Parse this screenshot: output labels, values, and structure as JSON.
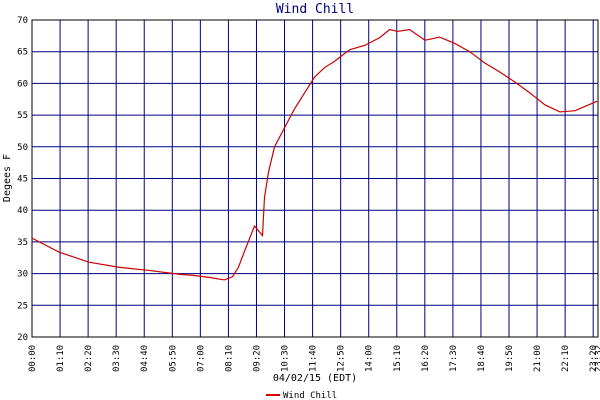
{
  "chart_data": {
    "type": "line",
    "title": "Wind Chill",
    "x_label": "04/02/15 (EDT)",
    "y_label": "Degees F",
    "x": [
      0,
      67,
      142,
      217,
      292,
      367,
      405,
      442,
      480,
      500,
      515,
      530,
      555,
      575,
      580,
      590,
      605,
      630,
      655,
      680,
      705,
      730,
      755,
      792,
      830,
      867,
      892,
      912,
      942,
      980,
      1017,
      1055,
      1092,
      1130,
      1167,
      1205,
      1242,
      1280,
      1317,
      1355,
      1410
    ],
    "series": [
      {
        "name": "Wind Chill",
        "color": "#cc0000",
        "values": [
          35.6,
          33.4,
          31.8,
          31.0,
          30.5,
          29.9,
          29.7,
          29.4,
          29.0,
          29.5,
          31.0,
          33.5,
          37.5,
          36.0,
          42.0,
          46.0,
          50.0,
          53.0,
          56.0,
          58.5,
          61.0,
          62.5,
          63.5,
          65.3,
          66.0,
          67.2,
          68.5,
          68.2,
          68.5,
          66.8,
          67.3,
          66.3,
          65.0,
          63.2,
          61.8,
          60.2,
          58.5,
          56.6,
          55.5,
          55.7,
          57.2
        ]
      }
    ],
    "xlim": [
      0,
      1412
    ],
    "xticks": [
      {
        "value": 0,
        "label": "00:00"
      },
      {
        "value": 70,
        "label": "01:10"
      },
      {
        "value": 140,
        "label": "02:20"
      },
      {
        "value": 210,
        "label": "03:30"
      },
      {
        "value": 280,
        "label": "04:40"
      },
      {
        "value": 350,
        "label": "05:50"
      },
      {
        "value": 420,
        "label": "07:00"
      },
      {
        "value": 490,
        "label": "08:10"
      },
      {
        "value": 560,
        "label": "09:20"
      },
      {
        "value": 630,
        "label": "10:30"
      },
      {
        "value": 700,
        "label": "11:40"
      },
      {
        "value": 770,
        "label": "12:50"
      },
      {
        "value": 840,
        "label": "14:00"
      },
      {
        "value": 910,
        "label": "15:10"
      },
      {
        "value": 980,
        "label": "16:20"
      },
      {
        "value": 1050,
        "label": "17:30"
      },
      {
        "value": 1120,
        "label": "18:40"
      },
      {
        "value": 1190,
        "label": "19:50"
      },
      {
        "value": 1260,
        "label": "21:00"
      },
      {
        "value": 1330,
        "label": "22:10"
      },
      {
        "value": 1400,
        "label": "23:20"
      },
      {
        "value": 1412,
        "label": "23:32"
      }
    ],
    "ylim": [
      20,
      70
    ],
    "yticks": [
      20,
      25,
      30,
      35,
      40,
      45,
      50,
      55,
      60,
      65,
      70
    ],
    "grid": true
  }
}
